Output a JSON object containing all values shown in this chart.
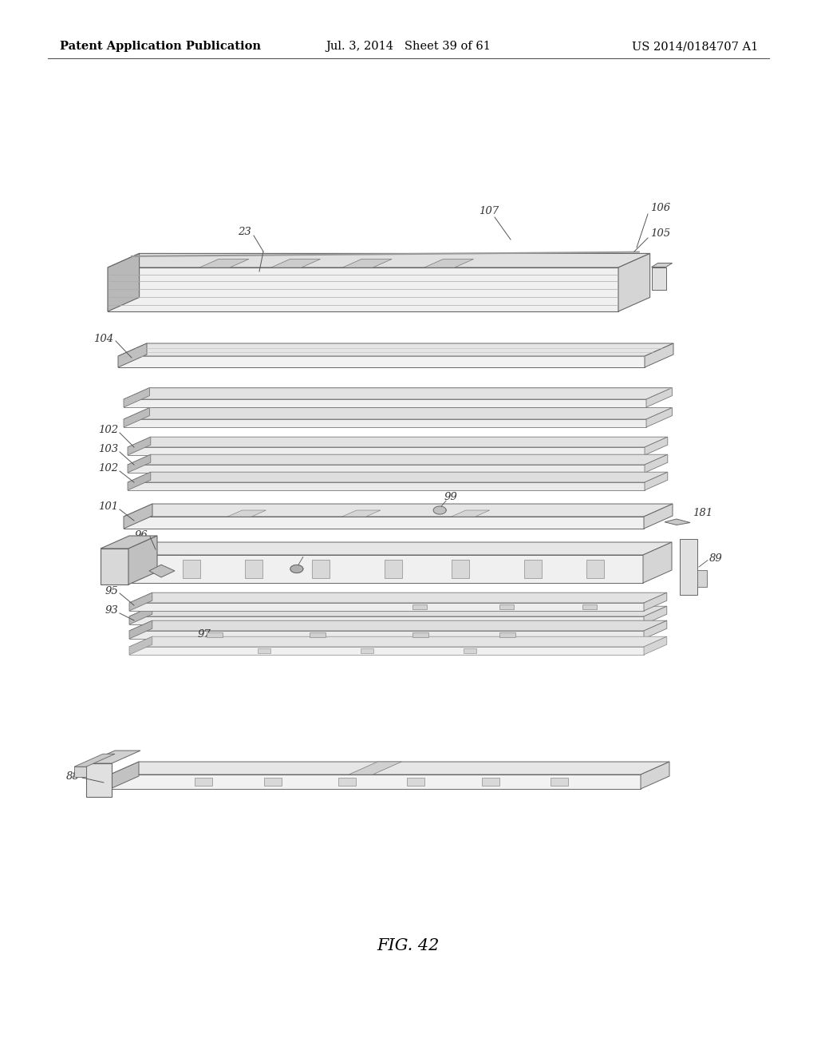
{
  "background_color": "#ffffff",
  "header_left": "Patent Application Publication",
  "header_center": "Jul. 3, 2014   Sheet 39 of 61",
  "header_right": "US 2014/0184707 A1",
  "figure_label": "FIG. 42",
  "header_fontsize": 10.5,
  "figure_label_fontsize": 15
}
